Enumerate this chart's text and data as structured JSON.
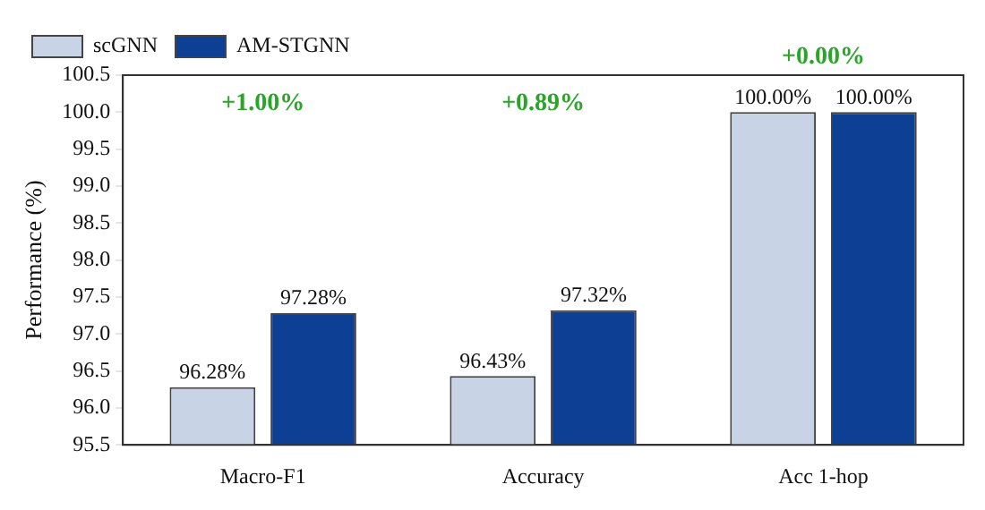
{
  "chart_data": {
    "type": "bar",
    "ylabel": "Performance (%)",
    "categories": [
      "Macro-F1",
      "Accuracy",
      "Acc 1-hop"
    ],
    "series": [
      {
        "name": "scGNN",
        "color": "#c8d3e6",
        "values": [
          96.28,
          96.43,
          100.0
        ],
        "value_labels": [
          "96.28%",
          "96.43%",
          "100.00%"
        ]
      },
      {
        "name": "AM-STGNN",
        "color": "#0d3f94",
        "values": [
          97.28,
          97.32,
          100.0
        ],
        "value_labels": [
          "97.28%",
          "97.32%",
          "100.00%"
        ]
      }
    ],
    "ylim": [
      95.5,
      100.5
    ],
    "yticks": [
      {
        "value": 95.5,
        "label": "95.5"
      },
      {
        "value": 96,
        "label": "96.0"
      },
      {
        "value": 96.5,
        "label": "96.5"
      },
      {
        "value": 97,
        "label": "97.0"
      },
      {
        "value": 97.5,
        "label": "97.5"
      },
      {
        "value": 98,
        "label": "98.0"
      },
      {
        "value": 98.5,
        "label": "98.5"
      },
      {
        "value": 99,
        "label": "99.0"
      },
      {
        "value": 99.5,
        "label": "99.5"
      },
      {
        "value": 100,
        "label": "100.0"
      },
      {
        "value": 100.5,
        "label": "100.5"
      }
    ],
    "annotations": [
      "+1.00%",
      "+0.89%",
      "+0.00%"
    ],
    "grid": false,
    "legend": "top left"
  }
}
